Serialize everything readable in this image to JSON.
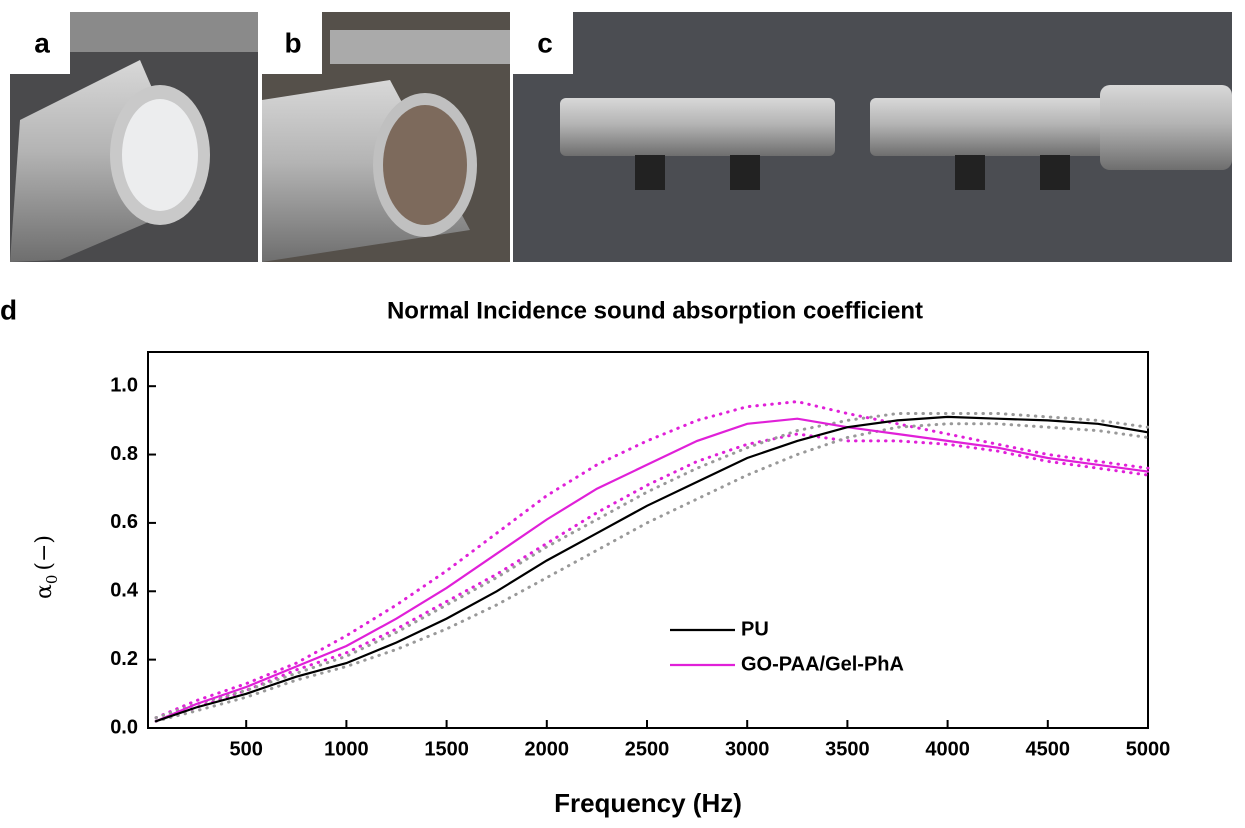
{
  "panels": [
    "a",
    "b",
    "c",
    "d"
  ],
  "chart_data": {
    "type": "line",
    "title": "Normal Incidence sound absorption coefficient",
    "x_label": "Frequency (Hz)",
    "y_label": {
      "symbol": "α",
      "subscript": "0",
      "unit": "(−)"
    },
    "x": [
      50,
      250,
      500,
      750,
      1000,
      1250,
      1500,
      1750,
      2000,
      2250,
      2500,
      2750,
      3000,
      3250,
      3500,
      3750,
      4000,
      4250,
      4500,
      4750,
      5000
    ],
    "series": [
      {
        "name": "PU",
        "color": "#000000",
        "style": "solid",
        "values": [
          0.02,
          0.06,
          0.1,
          0.15,
          0.19,
          0.25,
          0.32,
          0.4,
          0.49,
          0.57,
          0.65,
          0.72,
          0.79,
          0.84,
          0.88,
          0.9,
          0.91,
          0.905,
          0.9,
          0.89,
          0.865
        ]
      },
      {
        "name": "GO-PAA/Gel-PhA",
        "color": "#e020d8",
        "style": "solid",
        "values": [
          0.02,
          0.07,
          0.12,
          0.18,
          0.24,
          0.32,
          0.41,
          0.51,
          0.61,
          0.7,
          0.77,
          0.84,
          0.89,
          0.905,
          0.88,
          0.86,
          0.84,
          0.82,
          0.79,
          0.77,
          0.75
        ]
      },
      {
        "color": "#999999",
        "style": "dotted",
        "values": [
          0.03,
          0.07,
          0.11,
          0.16,
          0.21,
          0.28,
          0.36,
          0.44,
          0.53,
          0.61,
          0.69,
          0.76,
          0.82,
          0.87,
          0.9,
          0.92,
          0.92,
          0.92,
          0.91,
          0.9,
          0.88
        ]
      },
      {
        "color": "#999999",
        "style": "dotted",
        "values": [
          0.02,
          0.05,
          0.09,
          0.14,
          0.18,
          0.23,
          0.29,
          0.36,
          0.44,
          0.52,
          0.6,
          0.67,
          0.74,
          0.8,
          0.85,
          0.88,
          0.89,
          0.89,
          0.88,
          0.87,
          0.85
        ]
      },
      {
        "color": "#e020d8",
        "style": "dotted",
        "values": [
          0.03,
          0.08,
          0.13,
          0.19,
          0.27,
          0.36,
          0.46,
          0.57,
          0.68,
          0.77,
          0.84,
          0.9,
          0.94,
          0.955,
          0.92,
          0.89,
          0.86,
          0.83,
          0.8,
          0.78,
          0.76
        ]
      },
      {
        "color": "#e020d8",
        "style": "dotted",
        "values": [
          0.02,
          0.06,
          0.11,
          0.17,
          0.22,
          0.29,
          0.37,
          0.45,
          0.54,
          0.63,
          0.71,
          0.78,
          0.83,
          0.86,
          0.84,
          0.84,
          0.83,
          0.81,
          0.78,
          0.76,
          0.74
        ]
      }
    ],
    "xlim": [
      10,
      5000
    ],
    "ylim": [
      0,
      1.1
    ],
    "xticks": [
      500,
      1000,
      1500,
      2000,
      2500,
      3000,
      3500,
      4000,
      4500,
      5000
    ],
    "yticks": [
      {
        "value": 0,
        "label": "0.0"
      },
      0.2,
      0.4,
      0.6,
      0.8,
      {
        "value": 1,
        "label": "1.0"
      }
    ],
    "legend": "lower-right"
  }
}
